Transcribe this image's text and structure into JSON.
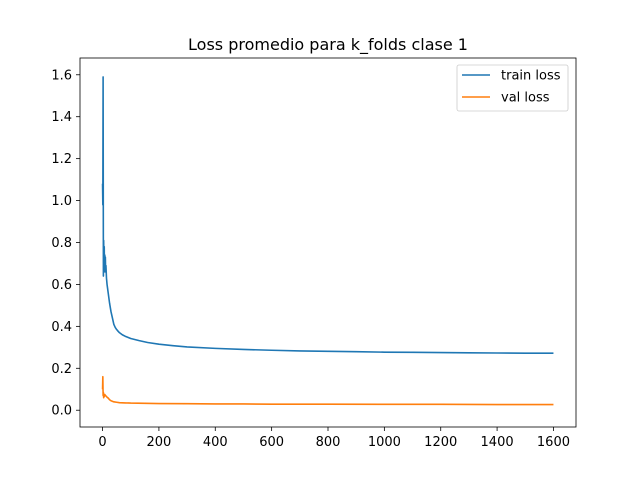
{
  "chart_data": {
    "type": "line",
    "title": "Loss promedio para k_folds clase 1",
    "xlabel": "",
    "ylabel": "",
    "xlim": [
      -80,
      1680
    ],
    "ylim": [
      -0.08,
      1.68
    ],
    "xticks": [
      0,
      200,
      400,
      600,
      800,
      1000,
      1200,
      1400,
      1600
    ],
    "xtick_labels": [
      "0",
      "200",
      "400",
      "600",
      "800",
      "1000",
      "1200",
      "1400",
      "1600"
    ],
    "yticks": [
      0.0,
      0.2,
      0.4,
      0.6,
      0.8,
      1.0,
      1.2,
      1.4,
      1.6
    ],
    "ytick_labels": [
      "0.0",
      "0.2",
      "0.4",
      "0.6",
      "0.8",
      "1.0",
      "1.2",
      "1.4",
      "1.6"
    ],
    "grid": false,
    "legend_position": "top-right",
    "series": [
      {
        "name": "train loss",
        "color": "#1f77b4",
        "x": [
          0,
          1,
          2,
          3,
          4,
          5,
          6,
          7,
          8,
          9,
          10,
          11,
          12,
          14,
          16,
          18,
          20,
          25,
          30,
          35,
          40,
          45,
          50,
          55,
          60,
          70,
          80,
          100,
          130,
          160,
          200,
          250,
          300,
          400,
          500,
          600,
          700,
          800,
          900,
          1000,
          1100,
          1200,
          1300,
          1400,
          1500,
          1600
        ],
        "y": [
          1.08,
          0.98,
          1.59,
          0.64,
          0.81,
          0.7,
          0.78,
          0.66,
          0.74,
          0.71,
          0.73,
          0.66,
          0.69,
          0.63,
          0.6,
          0.58,
          0.56,
          0.51,
          0.47,
          0.44,
          0.41,
          0.395,
          0.385,
          0.377,
          0.37,
          0.36,
          0.353,
          0.342,
          0.332,
          0.323,
          0.315,
          0.308,
          0.302,
          0.295,
          0.29,
          0.286,
          0.283,
          0.281,
          0.279,
          0.277,
          0.276,
          0.275,
          0.274,
          0.273,
          0.272,
          0.272
        ]
      },
      {
        "name": "val loss",
        "color": "#ff7f0e",
        "x": [
          0,
          1,
          2,
          3,
          4,
          5,
          6,
          8,
          10,
          12,
          14,
          16,
          20,
          25,
          30,
          40,
          50,
          60,
          80,
          100,
          150,
          200,
          300,
          400,
          500,
          600,
          800,
          1000,
          1200,
          1400,
          1600
        ],
        "y": [
          0.1,
          0.16,
          0.07,
          0.085,
          0.06,
          0.07,
          0.065,
          0.075,
          0.07,
          0.068,
          0.066,
          0.062,
          0.058,
          0.05,
          0.045,
          0.04,
          0.038,
          0.036,
          0.035,
          0.034,
          0.033,
          0.032,
          0.031,
          0.03,
          0.03,
          0.029,
          0.029,
          0.028,
          0.028,
          0.027,
          0.027
        ]
      }
    ]
  }
}
